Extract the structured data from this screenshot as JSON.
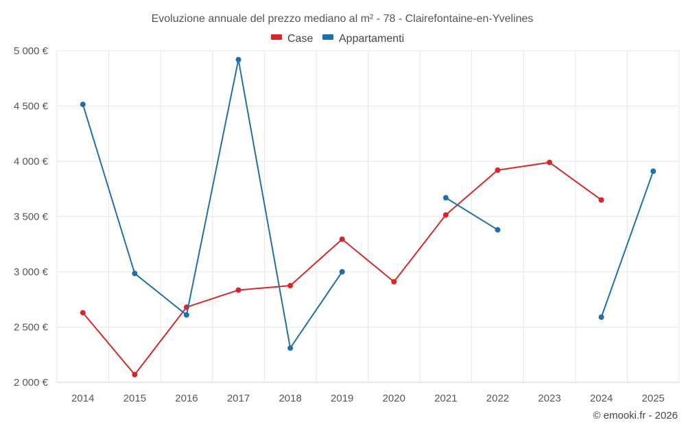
{
  "chart_data": {
    "type": "line",
    "title": "Evoluzione annuale del prezzo mediano al m² - 78 - Clairefontaine-en-Yvelines",
    "categories": [
      "2014",
      "2015",
      "2016",
      "2017",
      "2018",
      "2019",
      "2020",
      "2021",
      "2022",
      "2023",
      "2024",
      "2025"
    ],
    "ylim": [
      2000,
      5000
    ],
    "yticks": [
      2000,
      2500,
      3000,
      3500,
      4000,
      4500,
      5000
    ],
    "ytick_labels": [
      "2 000 €",
      "2 500 €",
      "3 000 €",
      "3 500 €",
      "4 000 €",
      "4 500 €",
      "5 000 €"
    ],
    "grid": true,
    "legend_position": "top-center",
    "series": [
      {
        "name": "Case",
        "color": "#d62728",
        "values": [
          2630,
          2070,
          2680,
          2835,
          2875,
          3295,
          2910,
          3515,
          3920,
          3990,
          3650,
          null
        ]
      },
      {
        "name": "Appartamenti",
        "color": "#1f6fa8",
        "values": [
          4515,
          2985,
          2610,
          4920,
          2310,
          3000,
          null,
          3670,
          3380,
          null,
          2590,
          3910
        ]
      }
    ]
  },
  "credit": "© emooki.fr - 2026"
}
